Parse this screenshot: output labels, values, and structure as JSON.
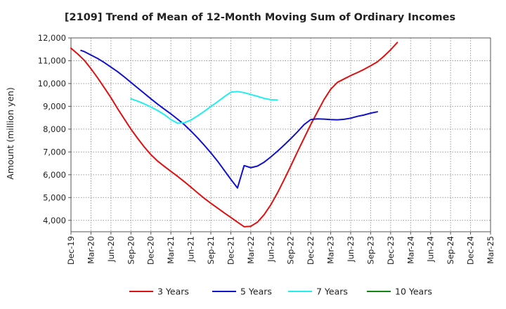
{
  "chart_data": {
    "type": "line",
    "title": "[2109]  Trend of Mean of 12-Month Moving Sum of Ordinary Incomes",
    "xlabel": "",
    "ylabel": "Amount (million yen)",
    "ylim": [
      3500,
      12000
    ],
    "yticks": [
      4000,
      5000,
      6000,
      7000,
      8000,
      9000,
      10000,
      11000,
      12000
    ],
    "ytick_labels": [
      "4,000",
      "5,000",
      "6,000",
      "7,000",
      "8,000",
      "9,000",
      "10,000",
      "11,000",
      "12,000"
    ],
    "x_tick_labels": [
      "Dec-19",
      "Mar-20",
      "Jun-20",
      "Sep-20",
      "Dec-20",
      "Mar-21",
      "Jun-21",
      "Sep-21",
      "Dec-21",
      "Mar-22",
      "Jun-22",
      "Sep-22",
      "Dec-22",
      "Mar-23",
      "Jun-23",
      "Sep-23",
      "Dec-23",
      "Mar-24",
      "Jun-24",
      "Sep-24",
      "Dec-24",
      "Mar-25"
    ],
    "grid": true,
    "legend_position": "bottom",
    "series": [
      {
        "name": "3 Years",
        "color": "#dd1111",
        "points": [
          [
            0,
            11550
          ],
          [
            1,
            11300
          ],
          [
            2,
            11020
          ],
          [
            3,
            10650
          ],
          [
            4,
            10250
          ],
          [
            5,
            9820
          ],
          [
            6,
            9380
          ],
          [
            7,
            8900
          ],
          [
            8,
            8450
          ],
          [
            9,
            8000
          ],
          [
            10,
            7600
          ],
          [
            11,
            7220
          ],
          [
            12,
            6880
          ],
          [
            13,
            6600
          ],
          [
            14,
            6370
          ],
          [
            15,
            6150
          ],
          [
            16,
            5930
          ],
          [
            17,
            5700
          ],
          [
            18,
            5460
          ],
          [
            19,
            5210
          ],
          [
            20,
            4970
          ],
          [
            21,
            4750
          ],
          [
            22,
            4540
          ],
          [
            23,
            4330
          ],
          [
            24,
            4130
          ],
          [
            25,
            3920
          ],
          [
            26,
            3720
          ],
          [
            27,
            3740
          ],
          [
            28,
            3920
          ],
          [
            29,
            4250
          ],
          [
            30,
            4680
          ],
          [
            31,
            5200
          ],
          [
            32,
            5780
          ],
          [
            33,
            6380
          ],
          [
            34,
            7000
          ],
          [
            35,
            7600
          ],
          [
            36,
            8200
          ],
          [
            37,
            8750
          ],
          [
            38,
            9300
          ],
          [
            39,
            9750
          ],
          [
            40,
            10050
          ],
          [
            41,
            10200
          ],
          [
            42,
            10350
          ],
          [
            43,
            10480
          ],
          [
            44,
            10620
          ],
          [
            45,
            10780
          ],
          [
            46,
            10950
          ],
          [
            47,
            11200
          ],
          [
            48,
            11480
          ],
          [
            49,
            11800
          ]
        ]
      },
      {
        "name": "5 Years",
        "color": "#1111cc",
        "points": [
          [
            1.5,
            11450
          ],
          [
            2,
            11400
          ],
          [
            3,
            11250
          ],
          [
            4,
            11100
          ],
          [
            5,
            10920
          ],
          [
            6,
            10720
          ],
          [
            7,
            10520
          ],
          [
            8,
            10290
          ],
          [
            9,
            10050
          ],
          [
            10,
            9810
          ],
          [
            11,
            9570
          ],
          [
            12,
            9330
          ],
          [
            13,
            9100
          ],
          [
            14,
            8880
          ],
          [
            15,
            8670
          ],
          [
            16,
            8440
          ],
          [
            17,
            8200
          ],
          [
            18,
            7920
          ],
          [
            19,
            7620
          ],
          [
            20,
            7300
          ],
          [
            21,
            6960
          ],
          [
            22,
            6600
          ],
          [
            23,
            6200
          ],
          [
            24,
            5800
          ],
          [
            25,
            5420
          ],
          [
            26,
            6400
          ],
          [
            27,
            6310
          ],
          [
            28,
            6380
          ],
          [
            29,
            6550
          ],
          [
            30,
            6780
          ],
          [
            31,
            7030
          ],
          [
            32,
            7300
          ],
          [
            33,
            7580
          ],
          [
            34,
            7880
          ],
          [
            35,
            8200
          ],
          [
            36,
            8420
          ],
          [
            37,
            8450
          ],
          [
            38,
            8440
          ],
          [
            39,
            8420
          ],
          [
            40,
            8410
          ],
          [
            41,
            8430
          ],
          [
            42,
            8480
          ],
          [
            43,
            8560
          ],
          [
            44,
            8620
          ],
          [
            45,
            8700
          ],
          [
            46,
            8760
          ]
        ]
      },
      {
        "name": "7 Years",
        "color": "#22eeee",
        "points": [
          [
            9,
            9330
          ],
          [
            10,
            9230
          ],
          [
            11,
            9110
          ],
          [
            12,
            8970
          ],
          [
            13,
            8820
          ],
          [
            14,
            8640
          ],
          [
            15,
            8420
          ],
          [
            16,
            8260
          ],
          [
            17,
            8280
          ],
          [
            18,
            8400
          ],
          [
            19,
            8580
          ],
          [
            20,
            8780
          ],
          [
            21,
            8990
          ],
          [
            22,
            9200
          ],
          [
            23,
            9420
          ],
          [
            24,
            9620
          ],
          [
            25,
            9650
          ],
          [
            26,
            9600
          ],
          [
            27,
            9520
          ],
          [
            28,
            9440
          ],
          [
            29,
            9350
          ],
          [
            30,
            9290
          ],
          [
            31,
            9280
          ]
        ]
      },
      {
        "name": "10 Years",
        "color": "#118811",
        "points": []
      }
    ]
  }
}
